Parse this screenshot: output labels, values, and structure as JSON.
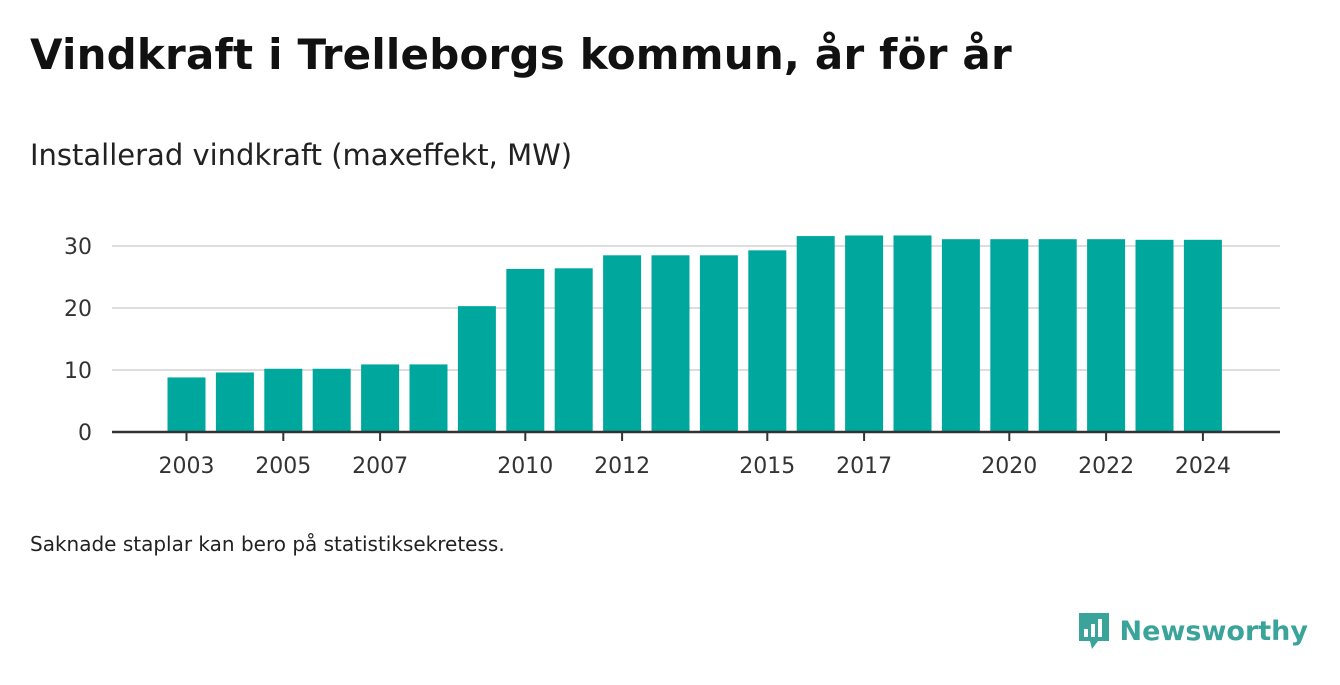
{
  "header": {
    "title": "Vindkraft i Trelleborgs kommun, år för år",
    "subtitle": "Installerad vindkraft (maxeffekt, MW)"
  },
  "footer": {
    "note": "Saknade staplar kan bero på statistiksekretess.",
    "brand": "Newsworthy"
  },
  "colors": {
    "bar": "#00a79d",
    "brand": "#3aa39a",
    "grid": "#dddddd",
    "axis": "#333333"
  },
  "chart_data": {
    "type": "bar",
    "categories": [
      "2003",
      "2004",
      "2005",
      "2006",
      "2007",
      "2008",
      "2009",
      "2010",
      "2011",
      "2012",
      "2013",
      "2014",
      "2015",
      "2016",
      "2017",
      "2018",
      "2019",
      "2020",
      "2021",
      "2022",
      "2023",
      "2024"
    ],
    "values": [
      8.8,
      9.6,
      10.2,
      10.2,
      10.9,
      10.9,
      20.3,
      26.3,
      26.4,
      28.5,
      28.5,
      28.5,
      29.3,
      31.6,
      31.7,
      31.7,
      31.1,
      31.1,
      31.1,
      31.1,
      31.0,
      31.0
    ],
    "x_tick_labels": [
      "2003",
      "2005",
      "2007",
      "2010",
      "2012",
      "2015",
      "2017",
      "2020",
      "2022",
      "2024"
    ],
    "y_ticks": [
      0,
      10,
      20,
      30
    ],
    "ylim": [
      0,
      33
    ],
    "xlabel": "",
    "ylabel": "",
    "grid": true
  }
}
